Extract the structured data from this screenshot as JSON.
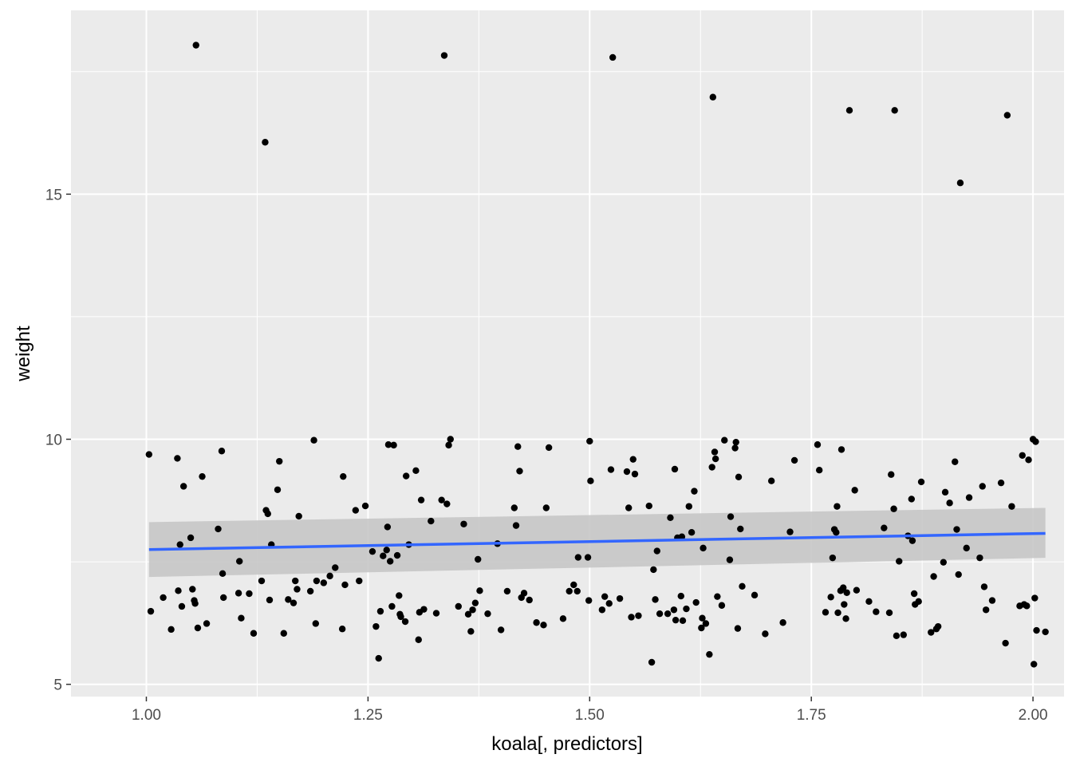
{
  "chart_data": {
    "type": "scatter",
    "xlabel": "koala[, predictors]",
    "ylabel": "weight",
    "xlim": [
      0.915,
      2.035
    ],
    "ylim": [
      4.75,
      18.75
    ],
    "x_ticks": [
      1.0,
      1.25,
      1.5,
      1.75,
      2.0
    ],
    "x_tick_labels": [
      "1.00",
      "1.25",
      "1.50",
      "1.75",
      "2.00"
    ],
    "y_ticks": [
      5,
      10,
      15
    ],
    "y_tick_labels": [
      "5",
      "10",
      "15"
    ],
    "grid": true,
    "legend": "none",
    "colors": {
      "panel_background": "#ebebeb",
      "grid": "#ffffff",
      "points": "#000000",
      "fit_line": "#3366ff",
      "confidence_band": "#c6c6c6"
    },
    "points": [
      [
        1.003,
        9.69
      ],
      [
        1.005,
        6.49
      ],
      [
        1.019,
        6.77
      ],
      [
        1.028,
        6.12
      ],
      [
        1.035,
        9.61
      ],
      [
        1.036,
        6.91
      ],
      [
        1.038,
        7.85
      ],
      [
        1.04,
        6.59
      ],
      [
        1.042,
        9.04
      ],
      [
        1.05,
        7.99
      ],
      [
        1.052,
        6.94
      ],
      [
        1.054,
        6.71
      ],
      [
        1.055,
        6.65
      ],
      [
        1.056,
        18.04
      ],
      [
        1.058,
        6.15
      ],
      [
        1.063,
        9.24
      ],
      [
        1.068,
        6.24
      ],
      [
        1.081,
        8.17
      ],
      [
        1.085,
        9.76
      ],
      [
        1.086,
        7.26
      ],
      [
        1.087,
        6.77
      ],
      [
        1.104,
        6.86
      ],
      [
        1.105,
        7.51
      ],
      [
        1.107,
        6.35
      ],
      [
        1.116,
        6.85
      ],
      [
        1.121,
        6.04
      ],
      [
        1.13,
        7.11
      ],
      [
        1.134,
        16.06
      ],
      [
        1.135,
        8.55
      ],
      [
        1.137,
        8.48
      ],
      [
        1.139,
        6.72
      ],
      [
        1.141,
        7.85
      ],
      [
        1.148,
        8.97
      ],
      [
        1.15,
        9.55
      ],
      [
        1.155,
        6.04
      ],
      [
        1.16,
        6.73
      ],
      [
        1.166,
        6.66
      ],
      [
        1.168,
        7.11
      ],
      [
        1.17,
        6.94
      ],
      [
        1.172,
        8.43
      ],
      [
        1.185,
        6.9
      ],
      [
        1.189,
        9.98
      ],
      [
        1.191,
        6.24
      ],
      [
        1.192,
        7.11
      ],
      [
        1.2,
        7.07
      ],
      [
        1.207,
        7.21
      ],
      [
        1.213,
        7.38
      ],
      [
        1.221,
        6.13
      ],
      [
        1.222,
        9.24
      ],
      [
        1.224,
        7.03
      ],
      [
        1.236,
        8.55
      ],
      [
        1.24,
        7.11
      ],
      [
        1.247,
        8.64
      ],
      [
        1.255,
        7.71
      ],
      [
        1.259,
        6.18
      ],
      [
        1.262,
        5.53
      ],
      [
        1.264,
        6.49
      ],
      [
        1.267,
        7.62
      ],
      [
        1.271,
        7.74
      ],
      [
        1.272,
        8.21
      ],
      [
        1.273,
        9.89
      ],
      [
        1.275,
        7.51
      ],
      [
        1.277,
        6.59
      ],
      [
        1.279,
        9.88
      ],
      [
        1.283,
        7.63
      ],
      [
        1.285,
        6.81
      ],
      [
        1.286,
        6.43
      ],
      [
        1.287,
        6.38
      ],
      [
        1.292,
        6.28
      ],
      [
        1.293,
        9.25
      ],
      [
        1.296,
        7.85
      ],
      [
        1.304,
        9.36
      ],
      [
        1.307,
        5.91
      ],
      [
        1.308,
        6.47
      ],
      [
        1.31,
        8.76
      ],
      [
        1.313,
        6.53
      ],
      [
        1.321,
        8.33
      ],
      [
        1.327,
        6.45
      ],
      [
        1.333,
        8.76
      ],
      [
        1.336,
        17.83
      ],
      [
        1.339,
        8.68
      ],
      [
        1.341,
        9.88
      ],
      [
        1.343,
        10.0
      ],
      [
        1.352,
        6.59
      ],
      [
        1.358,
        8.27
      ],
      [
        1.363,
        6.43
      ],
      [
        1.366,
        6.08
      ],
      [
        1.368,
        6.52
      ],
      [
        1.371,
        6.66
      ],
      [
        1.374,
        7.55
      ],
      [
        1.376,
        6.91
      ],
      [
        1.385,
        6.44
      ],
      [
        1.396,
        7.87
      ],
      [
        1.4,
        6.11
      ],
      [
        1.407,
        6.9
      ],
      [
        1.415,
        8.6
      ],
      [
        1.417,
        8.24
      ],
      [
        1.419,
        9.85
      ],
      [
        1.421,
        9.35
      ],
      [
        1.423,
        6.77
      ],
      [
        1.426,
        6.86
      ],
      [
        1.432,
        6.72
      ],
      [
        1.44,
        6.26
      ],
      [
        1.448,
        6.21
      ],
      [
        1.451,
        8.6
      ],
      [
        1.454,
        9.83
      ],
      [
        1.47,
        6.34
      ],
      [
        1.477,
        6.9
      ],
      [
        1.482,
        7.03
      ],
      [
        1.486,
        6.9
      ],
      [
        1.487,
        7.59
      ],
      [
        1.498,
        7.59
      ],
      [
        1.499,
        6.71
      ],
      [
        1.5,
        9.96
      ],
      [
        1.501,
        9.15
      ],
      [
        1.514,
        6.52
      ],
      [
        1.517,
        6.79
      ],
      [
        1.522,
        6.65
      ],
      [
        1.524,
        9.38
      ],
      [
        1.526,
        17.79
      ],
      [
        1.534,
        6.75
      ],
      [
        1.542,
        9.34
      ],
      [
        1.544,
        8.6
      ],
      [
        1.547,
        6.37
      ],
      [
        1.549,
        9.59
      ],
      [
        1.551,
        9.29
      ],
      [
        1.555,
        6.4
      ],
      [
        1.567,
        8.64
      ],
      [
        1.57,
        5.45
      ],
      [
        1.572,
        7.34
      ],
      [
        1.574,
        6.73
      ],
      [
        1.576,
        7.72
      ],
      [
        1.579,
        6.44
      ],
      [
        1.588,
        6.44
      ],
      [
        1.591,
        8.4
      ],
      [
        1.595,
        6.52
      ],
      [
        1.596,
        9.39
      ],
      [
        1.597,
        6.31
      ],
      [
        1.599,
        7.99
      ],
      [
        1.603,
        6.8
      ],
      [
        1.604,
        8.01
      ],
      [
        1.605,
        6.3
      ],
      [
        1.609,
        6.54
      ],
      [
        1.612,
        8.63
      ],
      [
        1.615,
        8.1
      ],
      [
        1.618,
        8.94
      ],
      [
        1.62,
        6.67
      ],
      [
        1.626,
        6.15
      ],
      [
        1.627,
        6.35
      ],
      [
        1.628,
        7.78
      ],
      [
        1.631,
        6.24
      ],
      [
        1.635,
        5.61
      ],
      [
        1.638,
        9.43
      ],
      [
        1.639,
        16.98
      ],
      [
        1.641,
        9.74
      ],
      [
        1.642,
        9.6
      ],
      [
        1.644,
        6.79
      ],
      [
        1.649,
        6.61
      ],
      [
        1.652,
        9.98
      ],
      [
        1.658,
        7.54
      ],
      [
        1.659,
        8.42
      ],
      [
        1.664,
        9.82
      ],
      [
        1.665,
        9.94
      ],
      [
        1.667,
        6.14
      ],
      [
        1.668,
        9.23
      ],
      [
        1.67,
        8.17
      ],
      [
        1.672,
        7.0
      ],
      [
        1.686,
        6.82
      ],
      [
        1.698,
        6.03
      ],
      [
        1.705,
        9.15
      ],
      [
        1.718,
        6.26
      ],
      [
        1.726,
        8.11
      ],
      [
        1.731,
        9.57
      ],
      [
        1.757,
        9.89
      ],
      [
        1.759,
        9.37
      ],
      [
        1.766,
        6.47
      ],
      [
        1.772,
        6.78
      ],
      [
        1.774,
        7.58
      ],
      [
        1.776,
        8.16
      ],
      [
        1.778,
        8.1
      ],
      [
        1.779,
        8.63
      ],
      [
        1.78,
        6.46
      ],
      [
        1.783,
        6.91
      ],
      [
        1.784,
        9.79
      ],
      [
        1.786,
        6.97
      ],
      [
        1.787,
        6.63
      ],
      [
        1.789,
        6.34
      ],
      [
        1.79,
        6.87
      ],
      [
        1.799,
        8.96
      ],
      [
        1.801,
        6.92
      ],
      [
        1.815,
        6.69
      ],
      [
        1.823,
        6.48
      ],
      [
        1.832,
        8.19
      ],
      [
        1.838,
        6.46
      ],
      [
        1.84,
        9.28
      ],
      [
        1.843,
        8.58
      ],
      [
        1.844,
        16.71
      ],
      [
        1.846,
        5.99
      ],
      [
        1.849,
        7.51
      ],
      [
        1.854,
        6.01
      ],
      [
        1.859,
        8.03
      ],
      [
        1.863,
        8.78
      ],
      [
        1.864,
        7.93
      ],
      [
        1.866,
        6.85
      ],
      [
        1.867,
        6.63
      ],
      [
        1.871,
        6.69
      ],
      [
        1.874,
        9.13
      ],
      [
        1.885,
        6.06
      ],
      [
        1.888,
        7.2
      ],
      [
        1.891,
        6.13
      ],
      [
        1.893,
        6.18
      ],
      [
        1.899,
        7.49
      ],
      [
        1.901,
        8.92
      ],
      [
        1.906,
        8.7
      ],
      [
        1.912,
        9.54
      ],
      [
        1.914,
        8.16
      ],
      [
        1.916,
        7.24
      ],
      [
        1.918,
        15.23
      ],
      [
        1.925,
        7.78
      ],
      [
        1.928,
        8.81
      ],
      [
        1.94,
        7.58
      ],
      [
        1.943,
        9.04
      ],
      [
        1.945,
        6.99
      ],
      [
        1.947,
        6.52
      ],
      [
        1.954,
        6.71
      ],
      [
        1.964,
        9.11
      ],
      [
        1.969,
        5.84
      ],
      [
        1.971,
        16.61
      ],
      [
        1.976,
        8.63
      ],
      [
        1.985,
        6.6
      ],
      [
        1.988,
        9.67
      ],
      [
        1.99,
        6.63
      ],
      [
        1.993,
        6.6
      ],
      [
        1.995,
        9.58
      ],
      [
        2.0,
        10.0
      ],
      [
        2.001,
        5.41
      ],
      [
        2.002,
        6.76
      ],
      [
        2.003,
        9.95
      ],
      [
        2.004,
        6.1
      ],
      [
        2.014,
        6.07
      ],
      [
        1.793,
        16.71
      ]
    ],
    "fit": {
      "x": [
        1.003,
        2.014
      ],
      "y": [
        7.75,
        8.08
      ],
      "ci_lower": [
        7.19,
        7.58
      ],
      "ci_upper": [
        8.31,
        8.6
      ]
    }
  }
}
